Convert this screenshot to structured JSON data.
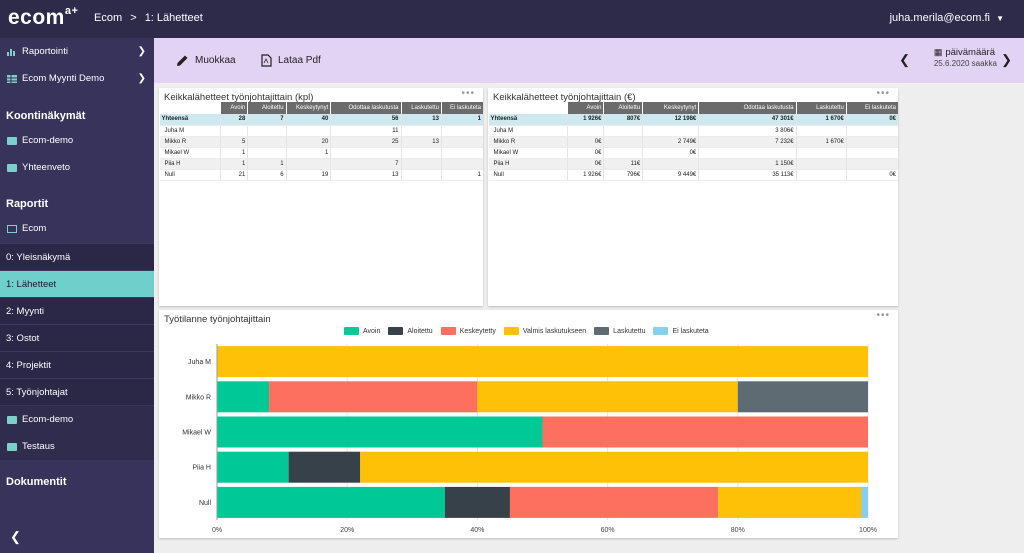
{
  "topbar": {
    "logo": "ecom",
    "logo_sup": "a+",
    "breadcrumb_root": "Ecom",
    "breadcrumb_sep": ">",
    "breadcrumb_current": "1: Lähetteet",
    "user": "juha.merila@ecom.fi"
  },
  "sidebar": {
    "top_items": [
      {
        "label": "Raportointi",
        "icon": "bar-chart-icon"
      },
      {
        "label": "Ecom Myynti Demo",
        "icon": "table-icon"
      }
    ],
    "sections": {
      "dashboards": "Koontinäkymät",
      "reports": "Raportit",
      "documents": "Dokumentit"
    },
    "dashboards": [
      "Ecom-demo",
      "Yhteenveto"
    ],
    "reports_folder": "Ecom",
    "report_items": [
      "0: Yleisnäkymä",
      "1: Lähetteet",
      "2: Myynti",
      "3: Ostot",
      "4: Projektit",
      "5: Työnjohtajat"
    ],
    "after_items": [
      "Ecom-demo",
      "Testaus"
    ]
  },
  "toolbar": {
    "edit": "Muokkaa",
    "pdf": "Lataa Pdf",
    "date_label": "päivämäärä",
    "date_value": "25.6.2020 saakka"
  },
  "table_kpl": {
    "title": "Keikkalähetteet työnjohtajittain (kpl)",
    "headers": [
      "Avoin",
      "Aloitettu",
      "Keskeytynyt",
      "Odottaa laskutusta",
      "Laskutettu",
      "Ei laskuteta"
    ],
    "rows": [
      {
        "name": "Yhteensä",
        "cells": [
          "28",
          "7",
          "40",
          "56",
          "13",
          "1"
        ]
      },
      {
        "name": "Juha M",
        "cells": [
          "",
          "",
          "",
          "11",
          "",
          ""
        ]
      },
      {
        "name": "Mikko R",
        "cells": [
          "5",
          "",
          "20",
          "25",
          "13",
          ""
        ]
      },
      {
        "name": "Mikael W",
        "cells": [
          "1",
          "",
          "1",
          "",
          "",
          ""
        ]
      },
      {
        "name": "Piia H",
        "cells": [
          "1",
          "1",
          "",
          "7",
          "",
          ""
        ]
      },
      {
        "name": "Null",
        "cells": [
          "21",
          "6",
          "19",
          "13",
          "",
          "1"
        ]
      }
    ]
  },
  "table_eur": {
    "title": "Keikkalähetteet työnjohtajittain (€)",
    "headers": [
      "Avoin",
      "Aloitettu",
      "Keskeytynyt",
      "Odottaa laskutusta",
      "Laskutettu",
      "Ei laskuteta"
    ],
    "rows": [
      {
        "name": "Yhteensä",
        "cells": [
          "1 926€",
          "807€",
          "12 198€",
          "47 301€",
          "1 670€",
          "0€"
        ]
      },
      {
        "name": "Juha M",
        "cells": [
          "",
          "",
          "",
          "3 806€",
          "",
          ""
        ]
      },
      {
        "name": "Mikko R",
        "cells": [
          "0€",
          "",
          "2 749€",
          "7 232€",
          "1 670€",
          ""
        ]
      },
      {
        "name": "Mikael W",
        "cells": [
          "0€",
          "",
          "0€",
          "",
          "",
          ""
        ]
      },
      {
        "name": "Piia H",
        "cells": [
          "0€",
          "11€",
          "",
          "1 150€",
          "",
          ""
        ]
      },
      {
        "name": "Null",
        "cells": [
          "1 926€",
          "796€",
          "9 449€",
          "35 113€",
          "",
          "0€"
        ]
      }
    ]
  },
  "chart_data": {
    "type": "bar",
    "orientation": "horizontal-stacked-100",
    "title": "Työtilanne työnjohtajittain",
    "categories": [
      "Juha M",
      "Mikko R",
      "Mikael W",
      "Piia H",
      "Null"
    ],
    "series": [
      {
        "name": "Avoin",
        "color": "#00c896",
        "values": [
          0,
          8,
          50,
          11,
          35
        ]
      },
      {
        "name": "Aloitettu",
        "color": "#374149",
        "values": [
          0,
          0,
          0,
          11,
          10
        ]
      },
      {
        "name": "Keskeytetty",
        "color": "#fd6f5e",
        "values": [
          0,
          32,
          50,
          0,
          32
        ]
      },
      {
        "name": "Valmis laskutukseen",
        "color": "#ffc107",
        "values": [
          100,
          40,
          0,
          78,
          22
        ]
      },
      {
        "name": "Laskutettu",
        "color": "#5f6b72",
        "values": [
          0,
          20,
          0,
          0,
          0
        ]
      },
      {
        "name": "Ei laskuteta",
        "color": "#87cfef",
        "values": [
          0,
          0,
          0,
          0,
          1
        ]
      }
    ],
    "xticks": [
      "0%",
      "20%",
      "40%",
      "60%",
      "80%",
      "100%"
    ],
    "xlim": [
      0,
      100
    ]
  }
}
